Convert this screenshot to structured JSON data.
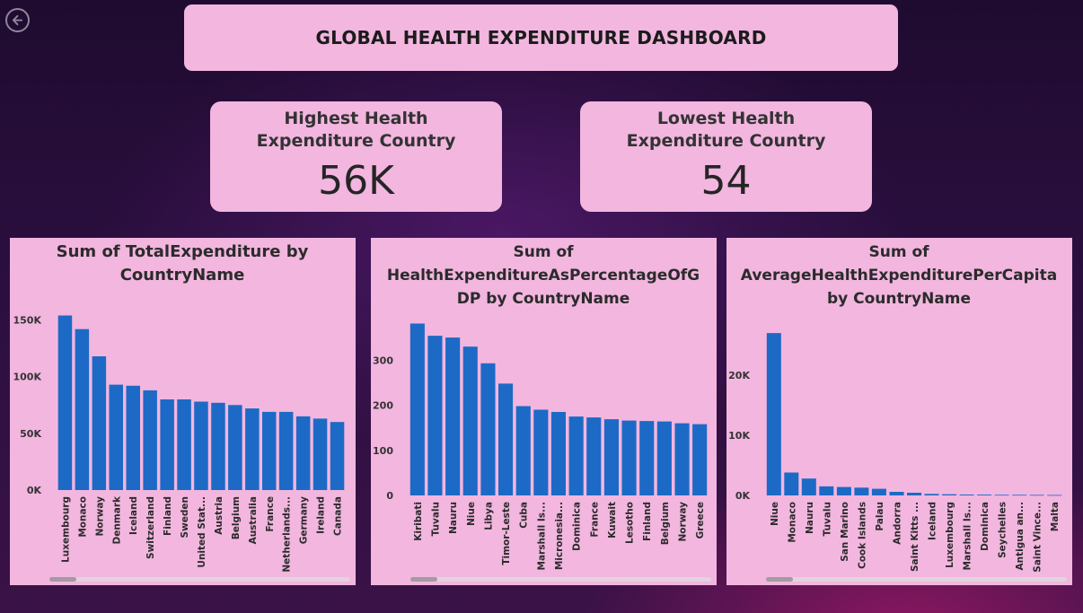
{
  "dashboard": {
    "title": "GLOBAL HEALTH EXPENDITURE DASHBOARD"
  },
  "kpis": [
    {
      "label": "Highest Health Expenditure Country",
      "value": "56K"
    },
    {
      "label": "Lowest Health Expenditure Country",
      "value": "54"
    }
  ],
  "colors": {
    "bar": "#1c6ac6",
    "panel": "#f2b6df",
    "text": "#2b2b2b"
  },
  "icons": {
    "back": "back-arrow-icon"
  },
  "chart_data": [
    {
      "type": "bar",
      "title": "Sum of TotalExpenditure by CountryName",
      "title_lines": [
        "Sum of TotalExpenditure by",
        "CountryName"
      ],
      "categories": [
        "Luxembourg",
        "Monaco",
        "Norway",
        "Denmark",
        "Iceland",
        "Switzerland",
        "Finland",
        "Sweden",
        "United Stat...",
        "Austria",
        "Belgium",
        "Australia",
        "France",
        "Netherlands...",
        "Germany",
        "Ireland",
        "Canada"
      ],
      "values": [
        154000,
        142000,
        118000,
        93000,
        92000,
        88000,
        80000,
        80000,
        78000,
        77000,
        75000,
        72000,
        69000,
        69000,
        65000,
        63000,
        60000
      ],
      "ylim": [
        0,
        175000
      ],
      "yticks": [
        0,
        50000,
        100000,
        150000
      ],
      "ytick_labels": [
        "0K",
        "50K",
        "100K",
        "150K"
      ],
      "xlabel": "",
      "ylabel": "",
      "grid": false
    },
    {
      "type": "bar",
      "title": "Sum of HealthExpenditureAsPercentageOfGDP by CountryName",
      "title_lines": [
        "Sum of",
        "HealthExpenditureAsPercentageOfG",
        "DP by CountryName"
      ],
      "categories": [
        "Kiribati",
        "Tuvalu",
        "Nauru",
        "Niue",
        "Libya",
        "Timor-Leste",
        "Cuba",
        "Marshall Is...",
        "Micronesia...",
        "Dominica",
        "France",
        "Kuwait",
        "Lesotho",
        "Finland",
        "Belgium",
        "Norway",
        "Greece"
      ],
      "values": [
        381,
        354,
        350,
        330,
        293,
        248,
        198,
        190,
        185,
        175,
        173,
        169,
        166,
        165,
        164,
        160,
        158
      ],
      "ylim": [
        0,
        400
      ],
      "yticks": [
        0,
        100,
        200,
        300
      ],
      "ytick_labels": [
        "0",
        "100",
        "200",
        "300"
      ],
      "xlabel": "",
      "ylabel": "",
      "grid": false
    },
    {
      "type": "bar",
      "title": "Sum of AverageHealthExpenditurePerCapita by CountryName",
      "title_lines": [
        "Sum of",
        "AverageHealthExpenditurePerCapita",
        "by CountryName"
      ],
      "categories": [
        "Niue",
        "Monaco",
        "Nauru",
        "Tuvalu",
        "San Marino",
        "Cook Islands",
        "Palau",
        "Andorra",
        "Saint Kitts ...",
        "Iceland",
        "Luxembourg",
        "Marshall Is...",
        "Dominica",
        "Seychelles",
        "Antigua an...",
        "Saint Vince...",
        "Malta"
      ],
      "values": [
        27000,
        3800,
        2800,
        1500,
        1400,
        1300,
        1100,
        600,
        450,
        250,
        200,
        150,
        130,
        110,
        100,
        90,
        80
      ],
      "ylim": [
        0,
        30000
      ],
      "yticks": [
        0,
        10000,
        20000
      ],
      "ytick_labels": [
        "0K",
        "10K",
        "20K"
      ],
      "xlabel": "",
      "ylabel": "",
      "grid": false
    }
  ]
}
